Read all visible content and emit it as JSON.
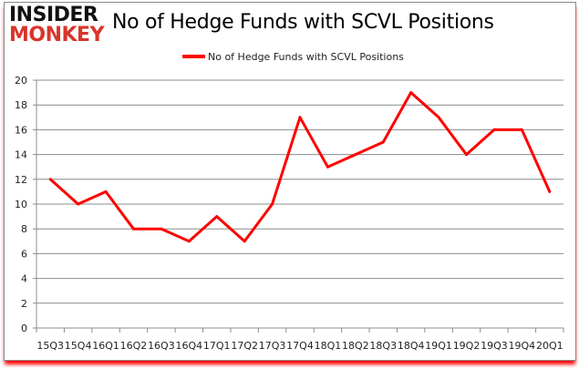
{
  "logo": {
    "line1": "INSIDER",
    "line2": "MONKEY"
  },
  "chart_data": {
    "type": "line",
    "title": "No of Hedge Funds with SCVL Positions",
    "categories": [
      "15Q3",
      "15Q4",
      "16Q1",
      "16Q2",
      "16Q3",
      "16Q4",
      "17Q1",
      "17Q2",
      "17Q3",
      "17Q4",
      "18Q1",
      "18Q2",
      "18Q3",
      "18Q4",
      "19Q1",
      "19Q2",
      "19Q3",
      "19Q4",
      "20Q1"
    ],
    "series": [
      {
        "name": "No of Hedge Funds with SCVL Positions",
        "values": [
          12,
          10,
          11,
          8,
          8,
          7,
          9,
          7,
          10,
          17,
          13,
          14,
          15,
          19,
          17,
          14,
          16,
          16,
          11
        ],
        "color": "#ff0000"
      }
    ],
    "ylim": [
      0,
      20
    ],
    "yticks": [
      0,
      2,
      4,
      6,
      8,
      10,
      12,
      14,
      16,
      18,
      20
    ],
    "grid": true,
    "legend": "top-center"
  }
}
